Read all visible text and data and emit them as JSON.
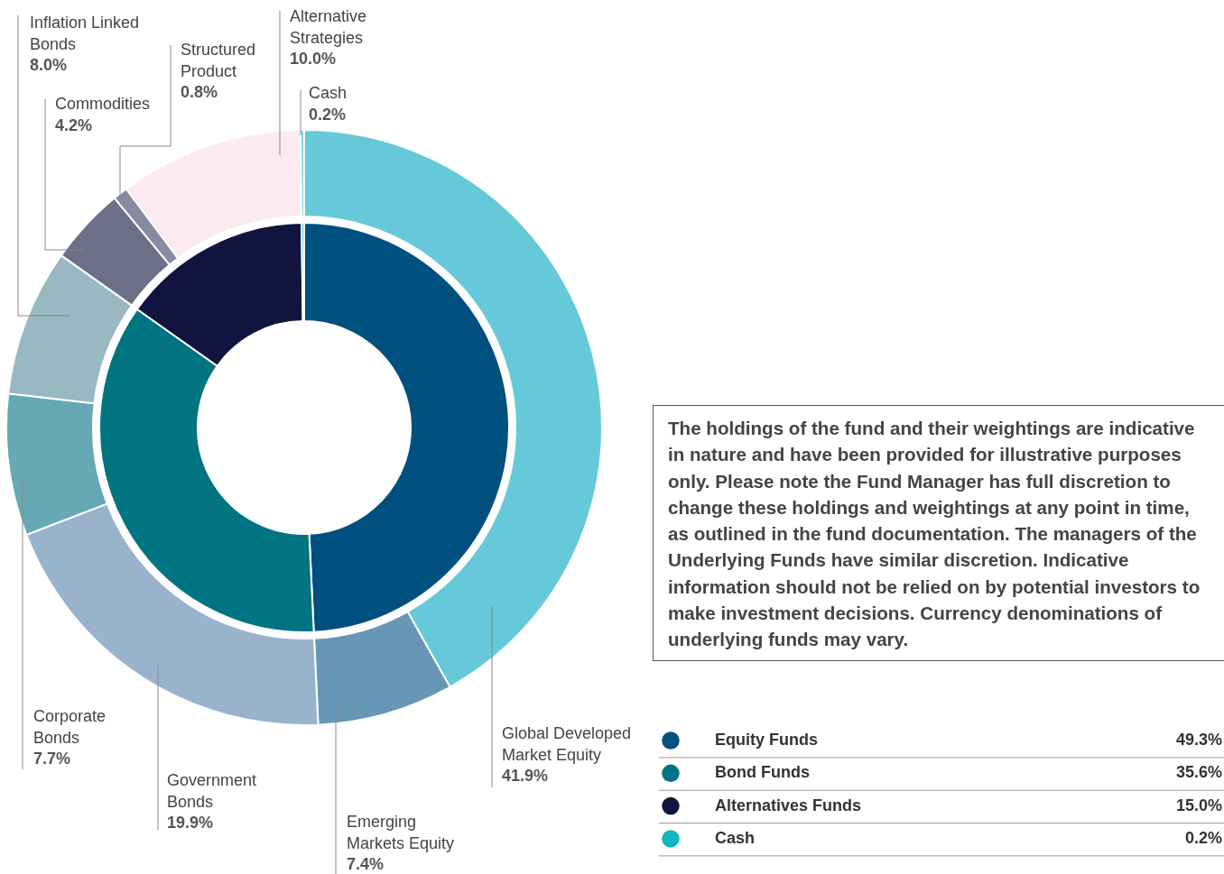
{
  "chart_data": [
    {
      "type": "donut",
      "categories": [
        "Global Developed Market Equity",
        "Emerging Markets Equity",
        "Government Bonds",
        "Corporate Bonds",
        "Inflation Linked Bonds",
        "Commodities",
        "Structured Product",
        "Alternative Strategies",
        "Cash"
      ],
      "values": [
        41.9,
        7.4,
        19.9,
        7.7,
        8.0,
        4.2,
        0.8,
        10.0,
        0.2
      ],
      "value_labels": [
        "41.9%",
        "7.4%",
        "19.9%",
        "7.7%",
        "8.0%",
        "4.2%",
        "0.8%",
        "10.0%",
        "0.2%"
      ],
      "colors": [
        "#66c9d9",
        "#6897b6",
        "#9ab3cc",
        "#66a9b4",
        "#9ab8c2",
        "#6d6f88",
        "#878aa0",
        "#fbeaf0",
        "#7fd3e0"
      ],
      "annotations": [
        "The holdings of the fund and their weightings are indicative in nature and have been provided for illustrative purposes only. Please note the Fund Manager has full discretion to change these holdings and weightings at any point in time, as outlined in the fund documentation. The managers of the Underlying Funds have similar discretion. Indicative information should not be relied on by potential investors to make investment decisions. Currency denominations of underlying funds may vary."
      ]
    },
    {
      "type": "donut",
      "categories": [
        "Equity Funds",
        "Bond Funds",
        "Alternatives Funds",
        "Cash"
      ],
      "values": [
        49.3,
        35.6,
        15.0,
        0.2
      ],
      "value_labels": [
        "49.3%",
        "35.6%",
        "15.0%",
        "0.2%"
      ],
      "colors": [
        "#00507f",
        "#007481",
        "#11143f",
        "#13b5c1"
      ],
      "legend": "right"
    }
  ]
}
